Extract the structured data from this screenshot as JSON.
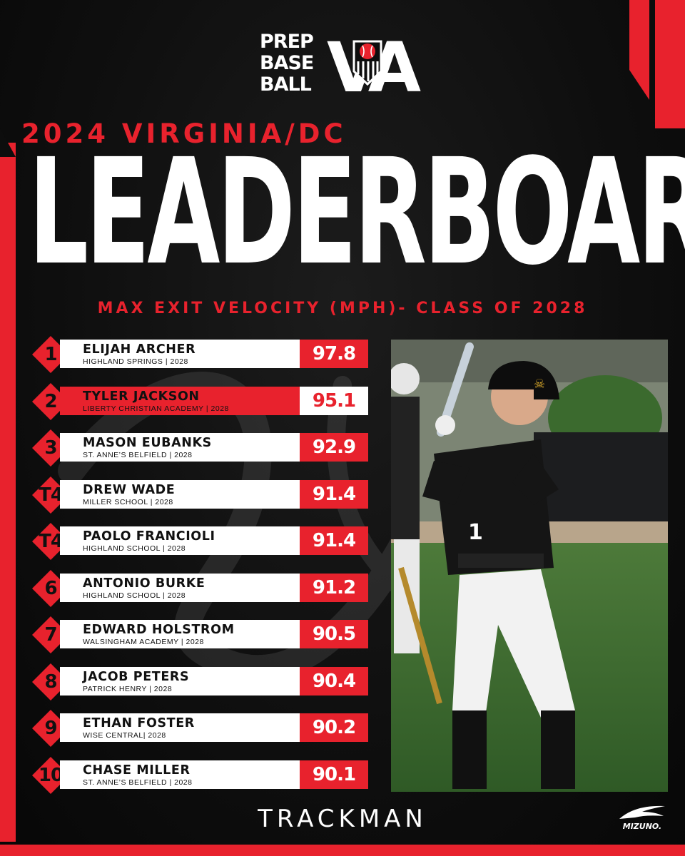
{
  "brand": {
    "logo_line1": "PREP",
    "logo_line2": "BASE",
    "logo_line3": "BALL",
    "logo_mark": "VA"
  },
  "header": {
    "year_region": "2024 VIRGINIA/DC",
    "title": "LEADERBOARD",
    "subtitle": "MAX EXIT VELOCITY (MPH)- CLASS OF 2028"
  },
  "players": [
    {
      "rank": "1",
      "name": "ELIJAH ARCHER",
      "school": "HIGHLAND SPRINGS | 2028",
      "value": "97.8"
    },
    {
      "rank": "2",
      "name": "TYLER JACKSON",
      "school": "LIBERTY CHRISTIAN ACADEMY | 2028",
      "value": "95.1"
    },
    {
      "rank": "3",
      "name": "MASON EUBANKS",
      "school": "ST. ANNE’S BELFIELD | 2028",
      "value": "92.9"
    },
    {
      "rank": "T4",
      "name": "DREW WADE",
      "school": "MILLER SCHOOL | 2028",
      "value": "91.4"
    },
    {
      "rank": "T4",
      "name": "PAOLO FRANCIOLI",
      "school": "HIGHLAND SCHOOL | 2028",
      "value": "91.4"
    },
    {
      "rank": "6",
      "name": "ANTONIO BURKE",
      "school": "HIGHLAND SCHOOL | 2028",
      "value": "91.2"
    },
    {
      "rank": "7",
      "name": "EDWARD HOLSTROM",
      "school": "WALSINGHAM ACADEMY | 2028",
      "value": "90.5"
    },
    {
      "rank": "8",
      "name": "JACOB PETERS",
      "school": "PATRICK HENRY | 2028",
      "value": "90.4"
    },
    {
      "rank": "9",
      "name": "ETHAN FOSTER",
      "school": "WISE CENTRAL| 2028",
      "value": "90.2"
    },
    {
      "rank": "10",
      "name": "CHASE MILLER",
      "school": "ST. ANNE’S BELFIELD | 2028",
      "value": "90.1"
    }
  ],
  "footer": {
    "sponsor1": "TRACKMAN",
    "sponsor2": "MIZUNO."
  },
  "colors": {
    "accent": "#e8222d",
    "background": "#0d0d0d",
    "text": "#ffffff"
  },
  "icons": [
    "baseball-icon",
    "shield-icon",
    "mizuno-runbird-icon"
  ]
}
